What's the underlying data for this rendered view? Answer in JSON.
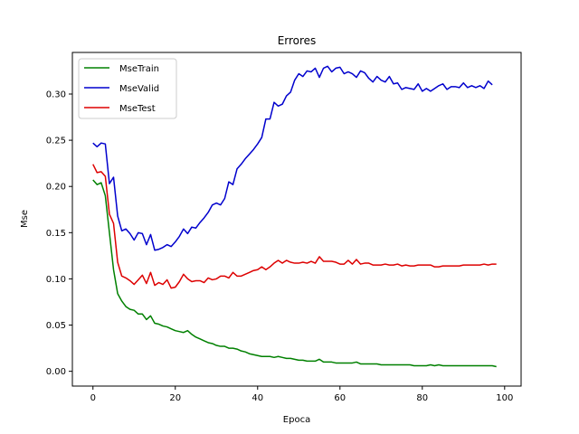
{
  "chart_data": {
    "type": "line",
    "title": "Errores",
    "xlabel": "Epoca",
    "ylabel": "Mse",
    "xlim": [
      -5,
      104
    ],
    "ylim": [
      -0.016,
      0.345
    ],
    "xticks": [
      0,
      20,
      40,
      60,
      80,
      100
    ],
    "yticks": [
      0.0,
      0.05,
      0.1,
      0.15,
      0.2,
      0.25,
      0.3
    ],
    "ytick_labels": [
      "0.00",
      "0.05",
      "0.10",
      "0.15",
      "0.20",
      "0.25",
      "0.30"
    ],
    "grid": false,
    "legend_position": "top-left",
    "series": [
      {
        "name": "MseTrain",
        "color": "#008000",
        "values": [
          0.207,
          0.202,
          0.204,
          0.19,
          0.15,
          0.11,
          0.084,
          0.076,
          0.07,
          0.067,
          0.066,
          0.062,
          0.062,
          0.056,
          0.06,
          0.052,
          0.051,
          0.049,
          0.048,
          0.046,
          0.044,
          0.043,
          0.042,
          0.044,
          0.04,
          0.037,
          0.035,
          0.033,
          0.031,
          0.03,
          0.028,
          0.027,
          0.027,
          0.025,
          0.025,
          0.024,
          0.022,
          0.021,
          0.019,
          0.018,
          0.017,
          0.016,
          0.016,
          0.016,
          0.015,
          0.016,
          0.015,
          0.014,
          0.014,
          0.013,
          0.012,
          0.012,
          0.011,
          0.011,
          0.011,
          0.013,
          0.01,
          0.01,
          0.01,
          0.009,
          0.009,
          0.009,
          0.009,
          0.009,
          0.01,
          0.008,
          0.008,
          0.008,
          0.008,
          0.008,
          0.007,
          0.007,
          0.007,
          0.007,
          0.007,
          0.007,
          0.007,
          0.007,
          0.006,
          0.006,
          0.006,
          0.006,
          0.007,
          0.006,
          0.007,
          0.006,
          0.006,
          0.006,
          0.006,
          0.006,
          0.006,
          0.006,
          0.006,
          0.006,
          0.006,
          0.006,
          0.006,
          0.006,
          0.005
        ]
      },
      {
        "name": "MseValid",
        "color": "#0000cd",
        "values": [
          0.247,
          0.243,
          0.247,
          0.246,
          0.203,
          0.21,
          0.168,
          0.152,
          0.154,
          0.149,
          0.142,
          0.15,
          0.149,
          0.137,
          0.148,
          0.131,
          0.132,
          0.134,
          0.137,
          0.135,
          0.14,
          0.146,
          0.154,
          0.149,
          0.156,
          0.155,
          0.161,
          0.166,
          0.172,
          0.18,
          0.182,
          0.18,
          0.187,
          0.205,
          0.202,
          0.219,
          0.224,
          0.23,
          0.235,
          0.24,
          0.246,
          0.253,
          0.273,
          0.273,
          0.291,
          0.287,
          0.289,
          0.298,
          0.302,
          0.315,
          0.322,
          0.319,
          0.325,
          0.324,
          0.328,
          0.318,
          0.328,
          0.33,
          0.324,
          0.328,
          0.329,
          0.322,
          0.324,
          0.322,
          0.318,
          0.325,
          0.323,
          0.317,
          0.313,
          0.319,
          0.315,
          0.313,
          0.319,
          0.311,
          0.312,
          0.305,
          0.307,
          0.306,
          0.305,
          0.311,
          0.303,
          0.306,
          0.303,
          0.306,
          0.309,
          0.311,
          0.305,
          0.308,
          0.308,
          0.307,
          0.312,
          0.307,
          0.309,
          0.307,
          0.309,
          0.306,
          0.314,
          0.31
        ]
      },
      {
        "name": "MseTest",
        "color": "#dd0000",
        "values": [
          0.224,
          0.215,
          0.216,
          0.211,
          0.17,
          0.16,
          0.118,
          0.103,
          0.101,
          0.098,
          0.094,
          0.099,
          0.104,
          0.095,
          0.107,
          0.093,
          0.096,
          0.094,
          0.099,
          0.09,
          0.091,
          0.097,
          0.105,
          0.1,
          0.097,
          0.098,
          0.098,
          0.096,
          0.101,
          0.099,
          0.1,
          0.103,
          0.103,
          0.101,
          0.107,
          0.103,
          0.103,
          0.105,
          0.107,
          0.109,
          0.11,
          0.113,
          0.11,
          0.113,
          0.117,
          0.12,
          0.117,
          0.12,
          0.118,
          0.117,
          0.117,
          0.118,
          0.117,
          0.119,
          0.117,
          0.124,
          0.119,
          0.119,
          0.119,
          0.118,
          0.116,
          0.116,
          0.12,
          0.116,
          0.121,
          0.116,
          0.117,
          0.117,
          0.115,
          0.115,
          0.115,
          0.116,
          0.115,
          0.115,
          0.116,
          0.114,
          0.115,
          0.114,
          0.114,
          0.115,
          0.115,
          0.115,
          0.115,
          0.113,
          0.113,
          0.114,
          0.114,
          0.114,
          0.114,
          0.114,
          0.115,
          0.115,
          0.115,
          0.115,
          0.115,
          0.116,
          0.115,
          0.116,
          0.116
        ]
      }
    ]
  }
}
